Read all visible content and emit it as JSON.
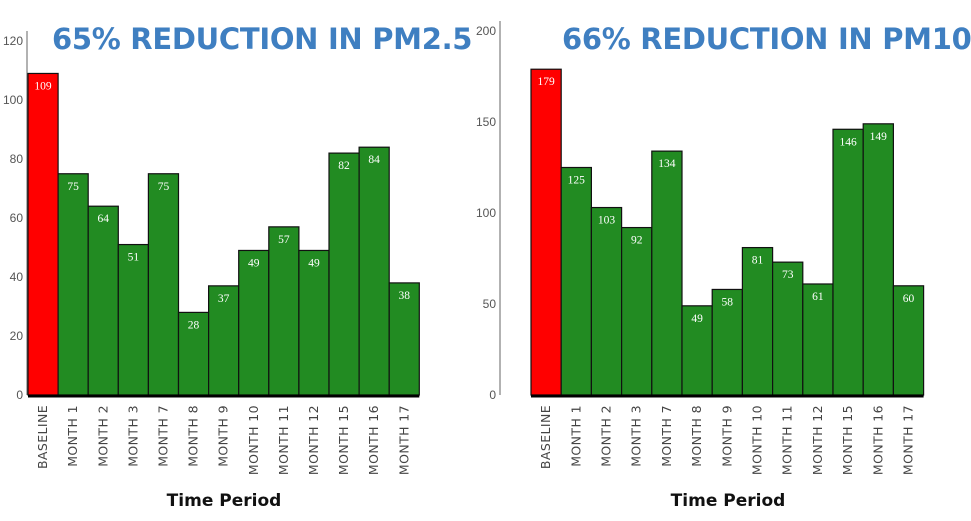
{
  "colors": {
    "baseline": "#ff0000",
    "bars": "#228b22",
    "title": "#3f7fc1"
  },
  "chart_data": [
    {
      "type": "bar",
      "title": "65% REDUCTION IN PM2.5",
      "xlabel": "Time Period",
      "ylabel": "",
      "ylim": [
        0,
        120
      ],
      "yticks": [
        0,
        20,
        40,
        60,
        80,
        100,
        120
      ],
      "categories": [
        "BASELINE",
        "MONTH 1",
        "MONTH 2",
        "MONTH 3",
        "MONTH 7",
        "MONTH 8",
        "MONTH 9",
        "MONTH 10",
        "MONTH 11",
        "MONTH 12",
        "MONTH 15",
        "MONTH 16",
        "MONTH 17"
      ],
      "values": [
        109,
        75,
        64,
        51,
        75,
        28,
        37,
        49,
        57,
        49,
        82,
        84,
        38
      ],
      "grid": false,
      "legend": "none"
    },
    {
      "type": "bar",
      "title": "66% REDUCTION IN PM10",
      "xlabel": "Time Period",
      "ylabel": "",
      "ylim": [
        0,
        200
      ],
      "yticks": [
        0,
        50,
        100,
        150,
        200
      ],
      "categories": [
        "BASELINE",
        "MONTH 1",
        "MONTH 2",
        "MONTH 3",
        "MONTH 7",
        "MONTH 8",
        "MONTH 9",
        "MONTH 10",
        "MONTH 11",
        "MONTH 12",
        "MONTH 15",
        "MONTH 16",
        "MONTH 17"
      ],
      "values": [
        179,
        125,
        103,
        92,
        134,
        49,
        58,
        81,
        73,
        61,
        146,
        149,
        60
      ],
      "grid": false,
      "legend": "none"
    }
  ]
}
